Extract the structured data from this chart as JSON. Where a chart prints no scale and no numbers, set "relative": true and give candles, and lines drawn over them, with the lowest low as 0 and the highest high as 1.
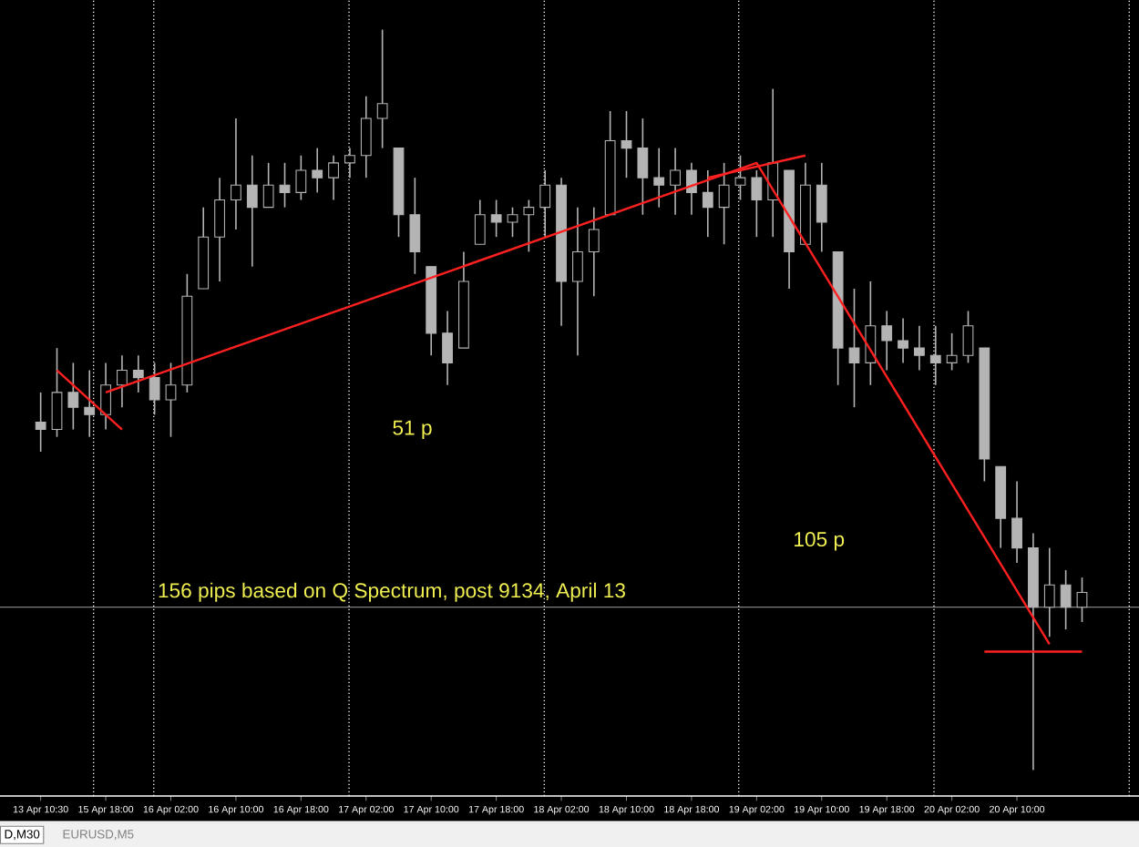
{
  "chart_data": {
    "type": "candlestick",
    "relative": true,
    "grid": "x",
    "color": "#b4b4b4",
    "categories": [
      "13 Apr 10:30",
      null,
      null,
      null,
      "15 Apr 18:00",
      null,
      null,
      null,
      "16 Apr 02:00",
      null,
      null,
      null,
      "16 Apr 10:00",
      null,
      null,
      null,
      "16 Apr 18:00",
      null,
      null,
      null,
      "17 Apr 02:00",
      null,
      null,
      null,
      "17 Apr 10:00",
      null,
      null,
      null,
      "17 Apr 18:00",
      null,
      null,
      null,
      "18 Apr 02:00",
      null,
      null,
      null,
      "18 Apr 10:00",
      null,
      null,
      null,
      "18 Apr 18:00",
      null,
      null,
      null,
      "19 Apr 02:00",
      null,
      null,
      null,
      "19 Apr 10:00",
      null,
      null,
      null,
      "19 Apr 18:00",
      null,
      null,
      null,
      "20 Apr 02:00",
      null,
      null,
      null,
      "20 Apr 10:00",
      null,
      null,
      null,
      null
    ],
    "ohlc": [
      [
        0.47,
        0.51,
        0.43,
        0.46
      ],
      [
        0.46,
        0.57,
        0.45,
        0.51
      ],
      [
        0.51,
        0.55,
        0.46,
        0.49
      ],
      [
        0.49,
        0.54,
        0.45,
        0.48
      ],
      [
        0.48,
        0.55,
        0.46,
        0.52
      ],
      [
        0.52,
        0.56,
        0.49,
        0.54
      ],
      [
        0.54,
        0.56,
        0.51,
        0.53
      ],
      [
        0.53,
        0.55,
        0.48,
        0.5
      ],
      [
        0.5,
        0.55,
        0.45,
        0.52
      ],
      [
        0.52,
        0.67,
        0.51,
        0.64
      ],
      [
        0.65,
        0.76,
        0.65,
        0.72
      ],
      [
        0.72,
        0.8,
        0.66,
        0.77
      ],
      [
        0.77,
        0.88,
        0.73,
        0.79
      ],
      [
        0.79,
        0.83,
        0.68,
        0.76
      ],
      [
        0.76,
        0.82,
        0.76,
        0.79
      ],
      [
        0.79,
        0.82,
        0.76,
        0.78
      ],
      [
        0.78,
        0.83,
        0.77,
        0.81
      ],
      [
        0.81,
        0.84,
        0.78,
        0.8
      ],
      [
        0.8,
        0.83,
        0.77,
        0.82
      ],
      [
        0.82,
        0.84,
        0.8,
        0.83
      ],
      [
        0.83,
        0.91,
        0.8,
        0.88
      ],
      [
        0.88,
        1,
        0.84,
        0.9
      ],
      [
        0.84,
        0.84,
        0.72,
        0.75
      ],
      [
        0.75,
        0.8,
        0.67,
        0.7
      ],
      [
        0.68,
        0.68,
        0.56,
        0.59
      ],
      [
        0.59,
        0.62,
        0.52,
        0.55
      ],
      [
        0.57,
        0.7,
        0.57,
        0.66
      ],
      [
        0.71,
        0.77,
        0.71,
        0.75
      ],
      [
        0.75,
        0.77,
        0.72,
        0.74
      ],
      [
        0.74,
        0.76,
        0.72,
        0.75
      ],
      [
        0.75,
        0.77,
        0.7,
        0.76
      ],
      [
        0.76,
        0.81,
        0.72,
        0.79
      ],
      [
        0.79,
        0.8,
        0.6,
        0.66
      ],
      [
        0.66,
        0.76,
        0.56,
        0.7
      ],
      [
        0.7,
        0.76,
        0.64,
        0.73
      ],
      [
        0.75,
        0.89,
        0.75,
        0.85
      ],
      [
        0.85,
        0.89,
        0.8,
        0.84
      ],
      [
        0.84,
        0.88,
        0.75,
        0.8
      ],
      [
        0.8,
        0.84,
        0.76,
        0.79
      ],
      [
        0.79,
        0.84,
        0.75,
        0.81
      ],
      [
        0.81,
        0.82,
        0.75,
        0.78
      ],
      [
        0.78,
        0.81,
        0.72,
        0.76
      ],
      [
        0.76,
        0.82,
        0.71,
        0.79
      ],
      [
        0.79,
        0.83,
        0.77,
        0.8
      ],
      [
        0.8,
        0.81,
        0.72,
        0.77
      ],
      [
        0.77,
        0.92,
        0.72,
        0.82
      ],
      [
        0.81,
        0.81,
        0.65,
        0.7
      ],
      [
        0.71,
        0.82,
        0.71,
        0.79
      ],
      [
        0.79,
        0.82,
        0.7,
        0.74
      ],
      [
        0.7,
        0.7,
        0.52,
        0.57
      ],
      [
        0.57,
        0.65,
        0.49,
        0.55
      ],
      [
        0.55,
        0.66,
        0.52,
        0.6
      ],
      [
        0.6,
        0.62,
        0.54,
        0.58
      ],
      [
        0.58,
        0.61,
        0.55,
        0.57
      ],
      [
        0.57,
        0.6,
        0.54,
        0.56
      ],
      [
        0.56,
        0.6,
        0.52,
        0.55
      ],
      [
        0.55,
        0.59,
        0.54,
        0.56
      ],
      [
        0.56,
        0.62,
        0.55,
        0.6
      ],
      [
        0.57,
        0.57,
        0.39,
        0.42
      ],
      [
        0.41,
        0.41,
        0.3,
        0.34
      ],
      [
        0.34,
        0.39,
        0.28,
        0.3
      ],
      [
        0.3,
        0.32,
        0,
        0.22
      ],
      [
        0.22,
        0.3,
        0.18,
        0.25
      ],
      [
        0.25,
        0.27,
        0.19,
        0.22
      ],
      [
        0.22,
        0.26,
        0.2,
        0.24
      ]
    ],
    "series": [
      {
        "type": "line",
        "color": "#ff2020",
        "values": [
          null,
          null,
          null,
          null,
          0.51,
          null,
          null,
          null,
          null,
          null,
          null,
          null,
          null,
          null,
          null,
          null,
          null,
          null,
          null,
          null,
          null,
          null,
          null,
          null,
          null,
          null,
          null,
          null,
          null,
          null,
          null,
          null,
          null,
          null,
          null,
          null,
          null,
          null,
          null,
          null,
          null,
          null,
          null,
          null,
          0.82,
          null,
          null,
          null,
          null,
          null,
          null,
          null,
          null,
          null,
          null,
          null,
          null,
          null,
          null,
          null,
          null,
          null,
          0.17,
          null,
          null
        ]
      },
      {
        "type": "line",
        "color": "#ff2020",
        "values": [
          null,
          0.54,
          null,
          null,
          null,
          0.46,
          null,
          null,
          null,
          null,
          null,
          null,
          null,
          null,
          null,
          null,
          null,
          null,
          null,
          null,
          null,
          null,
          null,
          null,
          null,
          null,
          null,
          null,
          null,
          null,
          null,
          null,
          null,
          null,
          null,
          null,
          null,
          null,
          null,
          null,
          null,
          null,
          null,
          null,
          null,
          null,
          null,
          null,
          null,
          null,
          null,
          null,
          null,
          null,
          null,
          null,
          null,
          null,
          null,
          null,
          null,
          null,
          null,
          null,
          null
        ]
      },
      {
        "type": "line",
        "color": "#ff2020",
        "values": [
          null,
          null,
          null,
          null,
          null,
          null,
          null,
          null,
          null,
          null,
          null,
          null,
          null,
          null,
          null,
          null,
          null,
          null,
          null,
          null,
          null,
          null,
          null,
          null,
          null,
          null,
          null,
          null,
          null,
          null,
          null,
          null,
          null,
          null,
          null,
          null,
          null,
          null,
          null,
          null,
          null,
          0.8,
          null,
          null,
          null,
          null,
          null,
          0.83,
          null,
          null,
          null,
          null,
          null,
          null,
          null,
          null,
          null,
          null,
          null,
          null,
          null,
          null,
          null,
          null,
          null
        ]
      },
      {
        "type": "line",
        "color": "#ff2020",
        "values": [
          null,
          null,
          null,
          null,
          null,
          null,
          null,
          null,
          null,
          null,
          null,
          null,
          null,
          null,
          null,
          null,
          null,
          null,
          null,
          null,
          null,
          null,
          null,
          null,
          null,
          null,
          null,
          null,
          null,
          null,
          null,
          null,
          null,
          null,
          null,
          null,
          null,
          null,
          null,
          null,
          null,
          null,
          null,
          null,
          null,
          null,
          null,
          null,
          null,
          null,
          null,
          null,
          null,
          null,
          null,
          null,
          null,
          null,
          0.16,
          null,
          null,
          null,
          null,
          null,
          0.16
        ]
      }
    ],
    "ref_lines": [
      {
        "axis": "y",
        "value": 0.22,
        "color": "#808080",
        "line_style": "solid"
      }
    ],
    "annotations": [
      "51 p",
      "105 p",
      "156 pips based on Q Spectrum, post 9134, April 13",
      "D,M30",
      "EURUSD,M5"
    ]
  }
}
